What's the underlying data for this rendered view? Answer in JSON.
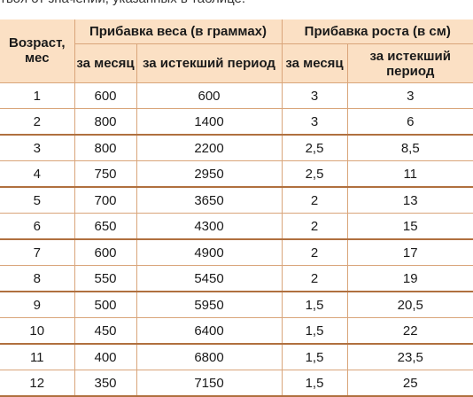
{
  "caption": "твоя от значений, указанных в таблице.",
  "table": {
    "header": {
      "age": "Возраст, мес",
      "weight_group": "Прибавка веса (в граммах)",
      "height_group": "Прибавка роста (в см)",
      "per_month": "за месяц",
      "elapsed_period": "за истекший период"
    },
    "rows": [
      {
        "age": "1",
        "w_month": "600",
        "w_total": "600",
        "h_month": "3",
        "h_total": "3"
      },
      {
        "age": "2",
        "w_month": "800",
        "w_total": "1400",
        "h_month": "3",
        "h_total": "6"
      },
      {
        "age": "3",
        "w_month": "800",
        "w_total": "2200",
        "h_month": "2,5",
        "h_total": "8,5"
      },
      {
        "age": "4",
        "w_month": "750",
        "w_total": "2950",
        "h_month": "2,5",
        "h_total": "11"
      },
      {
        "age": "5",
        "w_month": "700",
        "w_total": "3650",
        "h_month": "2",
        "h_total": "13"
      },
      {
        "age": "6",
        "w_month": "650",
        "w_total": "4300",
        "h_month": "2",
        "h_total": "15"
      },
      {
        "age": "7",
        "w_month": "600",
        "w_total": "4900",
        "h_month": "2",
        "h_total": "17"
      },
      {
        "age": "8",
        "w_month": "550",
        "w_total": "5450",
        "h_month": "2",
        "h_total": "19"
      },
      {
        "age": "9",
        "w_month": "500",
        "w_total": "5950",
        "h_month": "1,5",
        "h_total": "20,5"
      },
      {
        "age": "10",
        "w_month": "450",
        "w_total": "6400",
        "h_month": "1,5",
        "h_total": "22"
      },
      {
        "age": "11",
        "w_month": "400",
        "w_total": "6800",
        "h_month": "1,5",
        "h_total": "23,5"
      },
      {
        "age": "12",
        "w_month": "350",
        "w_total": "7150",
        "h_month": "1,5",
        "h_total": "25"
      }
    ]
  }
}
